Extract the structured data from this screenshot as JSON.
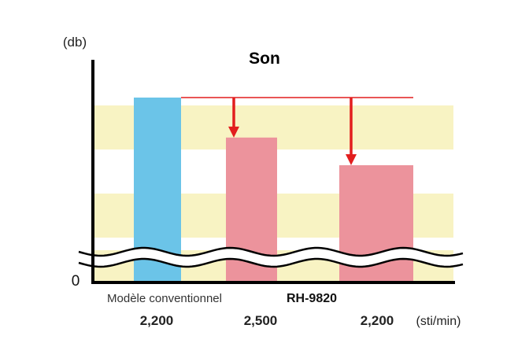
{
  "chart_data": {
    "type": "bar",
    "title": "Son",
    "y_unit": "(db)",
    "y_tick_zero": "0",
    "categories": [
      "Modèle conventionnel",
      "RH-9820",
      "RH-9820"
    ],
    "group_label": "RH-9820",
    "first_category_label": "Modèle conventionnel",
    "speeds": [
      "2,200",
      "2,500",
      "2,200"
    ],
    "speed_unit": "(sti/min)",
    "values": [
      100,
      74,
      56
    ],
    "ylim": [
      0,
      120
    ],
    "axis_break": true,
    "grid": false,
    "background_bands": true,
    "reference_line": 100,
    "colors": {
      "conventional": "#6bc4e8",
      "rh9820": "#ec939c",
      "bands": "#f8f3c3",
      "arrow": "#e21e1e"
    }
  }
}
